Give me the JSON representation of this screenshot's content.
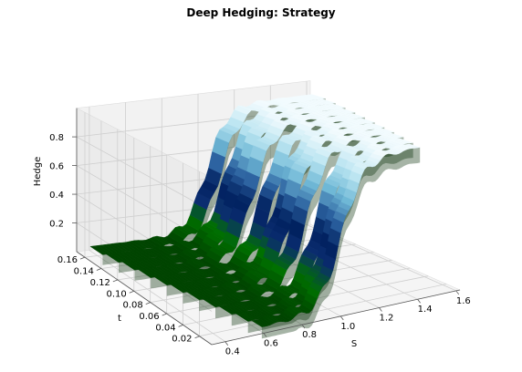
{
  "chart_data": {
    "type": "surface3d",
    "title": "Deep Hedging: Strategy",
    "xlabel": "S",
    "ylabel": "t",
    "zlabel": "Hedge",
    "xlim": [
      0.33,
      1.62
    ],
    "ylim": [
      0.005,
      0.17
    ],
    "zlim": [
      0.0,
      1.0
    ],
    "xticks": [
      "0.4",
      "0.6",
      "0.8",
      "1.0",
      "1.2",
      "1.4",
      "1.6"
    ],
    "yticks": [
      "0.02",
      "0.04",
      "0.06",
      "0.08",
      "0.10",
      "0.12",
      "0.14",
      "0.16"
    ],
    "zticks": [
      "0.2",
      "0.4",
      "0.6",
      "0.8"
    ],
    "grid": true,
    "colormap": [
      "#004400",
      "#007000",
      "#0b2d70",
      "#00205e",
      "#2a5f9e",
      "#6fb8d6",
      "#b7e3f0",
      "#f2fbfe"
    ],
    "surface": {
      "t": [
        0.16,
        0.145,
        0.13,
        0.115,
        0.1,
        0.085,
        0.07,
        0.055,
        0.04,
        0.025,
        0.01
      ],
      "s_min": [
        0.36,
        0.38,
        0.4,
        0.42,
        0.44,
        0.46,
        0.48,
        0.5,
        0.52,
        0.54,
        0.56
      ],
      "s_max": [
        1.58,
        1.56,
        1.54,
        1.52,
        1.5,
        1.48,
        1.46,
        1.44,
        1.42,
        1.4,
        1.38
      ],
      "low_level": 0.07,
      "high_level": 0.93,
      "center_strike": 1.0,
      "slope": 18
    }
  }
}
